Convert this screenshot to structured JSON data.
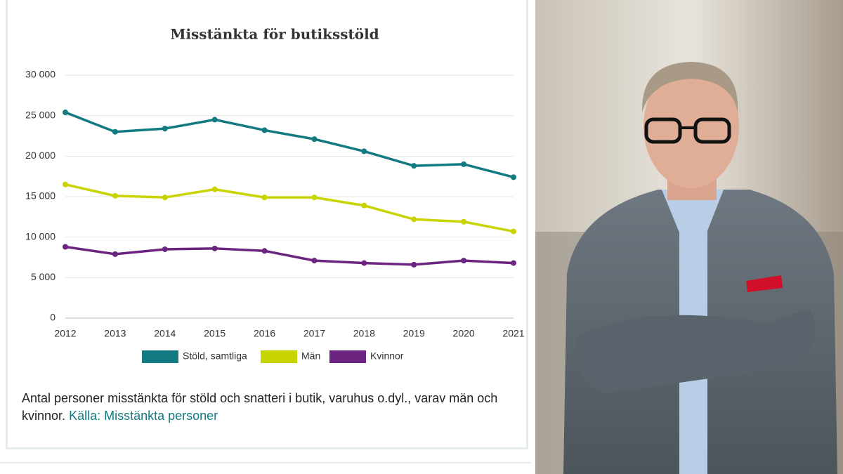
{
  "chart_data": {
    "type": "line",
    "title": "Misstänkta för butiksstöld",
    "categories": [
      "2012",
      "2013",
      "2014",
      "2015",
      "2016",
      "2017",
      "2018",
      "2019",
      "2020",
      "2021"
    ],
    "series": [
      {
        "name": "Stöld, samtliga",
        "color": "#127a80",
        "values": [
          25400,
          23000,
          23400,
          24500,
          23200,
          22100,
          20600,
          18800,
          19000,
          17400
        ]
      },
      {
        "name": "Män",
        "color": "#c8d400",
        "values": [
          16500,
          15100,
          14900,
          15900,
          14900,
          14900,
          13900,
          12200,
          11900,
          10700
        ]
      },
      {
        "name": "Kvinnor",
        "color": "#6b2480",
        "values": [
          8800,
          7900,
          8500,
          8600,
          8300,
          7100,
          6800,
          6600,
          7100,
          6800
        ]
      }
    ],
    "ylim": [
      0,
      30000
    ],
    "yticks": [
      0,
      {
        "value": 5000,
        "label": "5 000"
      },
      {
        "value": 10000,
        "label": "10 000"
      },
      {
        "value": 15000,
        "label": "15 000"
      },
      {
        "value": 20000,
        "label": "20 000"
      },
      {
        "value": 25000,
        "label": "25 000"
      },
      {
        "value": 30000,
        "label": "30 000"
      }
    ],
    "grid": true
  },
  "caption": "Antal personer misstänkta för stöld och snatteri i butik, varuhus o.dyl., varav män och kvinnor.",
  "source": "Källa: Misstänkta personer"
}
